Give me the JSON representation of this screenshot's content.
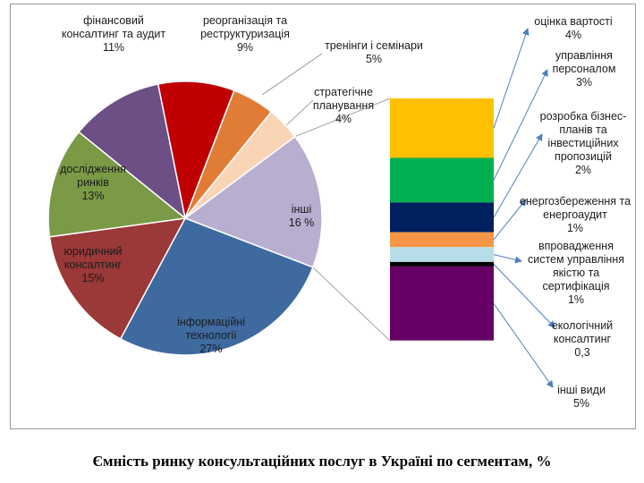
{
  "caption": "Ємність ринку консультаційних послуг в Україні по сегментам, %",
  "chart_data": {
    "type": "pie",
    "title": "Ємність ринку консультаційних послуг в Україні по сегментам, %",
    "pie": {
      "slices": [
        {
          "label": [
            "фінансовий",
            "консалтинг та аудит",
            "11%"
          ],
          "value": 11,
          "color": "#6b4f85"
        },
        {
          "label": [
            "реорганізація та",
            "реструктуризація",
            "9%"
          ],
          "value": 9,
          "color": "#c00000"
        },
        {
          "label": [
            "тренінги і семінари",
            "5%"
          ],
          "value": 5,
          "color": "#e07c36"
        },
        {
          "label": [
            "стратегічне",
            "планування",
            "4%"
          ],
          "value": 4,
          "color": "#f9d5b6"
        },
        {
          "label": [
            "інші",
            "16 %"
          ],
          "value": 16,
          "color": "#b8aed0"
        },
        {
          "label": [
            "інформаційні",
            "технології",
            "27%"
          ],
          "value": 27,
          "color": "#3e6aa0"
        },
        {
          "label": [
            "юридичний",
            "консалтинг",
            "15%"
          ],
          "value": 15,
          "color": "#9b3838"
        },
        {
          "label": [
            "дослідження",
            "ринків",
            "13%"
          ],
          "value": 13,
          "color": "#7a9a46"
        }
      ]
    },
    "breakdown": {
      "of": "інші",
      "segments": [
        {
          "label": [
            "оцінка вартості",
            "4%"
          ],
          "value": 4,
          "color": "#ffc000"
        },
        {
          "label": [
            "управління",
            "персоналом",
            "3%"
          ],
          "value": 3,
          "color": "#00b050"
        },
        {
          "label": [
            "розробка бізнес-",
            "планів та",
            "інвестиційних",
            "пропозицій",
            "2%"
          ],
          "value": 2,
          "color": "#002060"
        },
        {
          "label": [
            "енергозбереження та",
            "енергоаудит",
            "1%"
          ],
          "value": 1,
          "color": "#f79646"
        },
        {
          "label": [
            "впровадження",
            "систем управління",
            "якістю та",
            "сертифікація",
            "1%"
          ],
          "value": 1,
          "color": "#b7dee8"
        },
        {
          "label": [
            "екологічний",
            "консалтинг",
            "0,3"
          ],
          "value": 0.3,
          "color": "#000000"
        },
        {
          "label": [
            "інші види",
            "5%"
          ],
          "value": 5,
          "color": "#660066"
        }
      ]
    }
  }
}
